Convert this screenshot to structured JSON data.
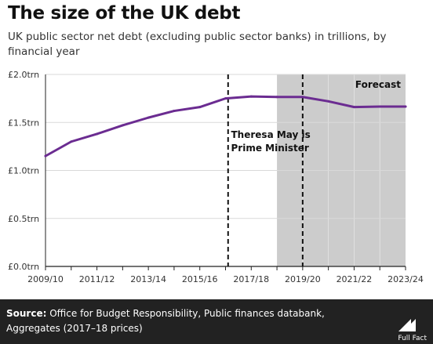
{
  "header": {
    "title": "The size of the UK debt",
    "subtitle": "UK public sector net debt (excluding public sector banks) in trillions, by financial year"
  },
  "chart_data": {
    "type": "line",
    "title": "The size of the UK debt",
    "subtitle": "UK public sector net debt (excluding public sector banks) in trillions, by financial year",
    "x": [
      "2009/10",
      "2010/11",
      "2011/12",
      "2012/13",
      "2013/14",
      "2014/15",
      "2015/16",
      "2016/17",
      "2017/18",
      "2018/19",
      "2019/20",
      "2020/21",
      "2021/22",
      "2022/23",
      "2023/24"
    ],
    "x_tick_labels": [
      "2009/10",
      "2011/12",
      "2013/14",
      "2015/16",
      "2017/18",
      "2019/20",
      "2021/22",
      "2023/24"
    ],
    "series": [
      {
        "values": [
          1.15,
          1.3,
          1.38,
          1.47,
          1.55,
          1.62,
          1.66,
          1.75,
          1.77,
          1.765,
          1.765,
          1.72,
          1.66,
          1.665,
          1.665
        ]
      }
    ],
    "ylim": [
      0,
      2.0
    ],
    "y_ticks": [
      0,
      0.5,
      1.0,
      1.5,
      2.0
    ],
    "y_tick_labels": [
      "£0.0trn",
      "£0.5trn",
      "£1.0trn",
      "£1.5trn",
      "£2.0trn"
    ],
    "xlabel": "",
    "ylabel": "",
    "grid": "horizontal",
    "forecast": {
      "label": "Forecast",
      "start": "2018/19",
      "end": "2023/24"
    },
    "annotation": {
      "text": "Theresa May is Prime Minister",
      "lines": [
        "Theresa May is",
        "Prime Minister"
      ]
    },
    "vlines": [
      "2016/17",
      "2019/20"
    ],
    "colors": {
      "line": "#6b2c91",
      "forecast_fill": "#cccccc",
      "grid": "#d9d9d9",
      "axis": "#222222"
    }
  },
  "footer": {
    "source_label": "Source:",
    "source_text": "Office for Budget Responsibility, Public finances databank, Aggregates (2017–18 prices)",
    "logo_text": "Full Fact"
  }
}
